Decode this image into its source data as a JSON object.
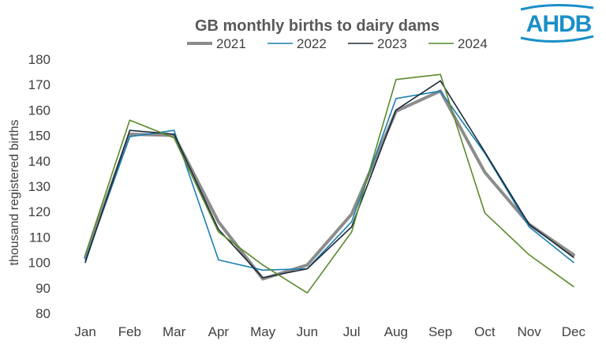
{
  "logo": {
    "text": "AHDB",
    "color": "#1a8fc8"
  },
  "chart_data": {
    "type": "line",
    "title": "GB monthly births to dairy dams",
    "xlabel": "",
    "ylabel": "thousand registered births",
    "categories": [
      "Jan",
      "Feb",
      "Mar",
      "Apr",
      "May",
      "Jun",
      "Jul",
      "Aug",
      "Sep",
      "Oct",
      "Nov",
      "Dec"
    ],
    "ylim": [
      80,
      180
    ],
    "yticks": [
      80,
      90,
      100,
      110,
      120,
      130,
      140,
      150,
      160,
      170,
      180
    ],
    "grid": false,
    "legend_position": "top",
    "series": [
      {
        "name": "2021",
        "color": "#8c8c8c",
        "width": 4,
        "values": [
          102,
          150.5,
          150,
          116,
          93.5,
          99,
          119,
          159.5,
          167.5,
          135.5,
          115,
          103
        ]
      },
      {
        "name": "2022",
        "color": "#1b7fb1",
        "width": 1.6,
        "values": [
          101,
          149.5,
          152,
          101,
          97,
          97.5,
          116,
          164.5,
          167.5,
          143,
          114,
          100
        ]
      },
      {
        "name": "2023",
        "color": "#1b2a3a",
        "width": 1.6,
        "values": [
          100,
          152,
          150.5,
          113,
          94,
          97.5,
          114,
          160,
          171.5,
          143.5,
          115,
          102
        ]
      },
      {
        "name": "2024",
        "color": "#5a8a2a",
        "width": 1.6,
        "values": [
          103,
          156,
          149,
          112,
          99,
          88,
          112,
          172,
          174,
          119.5,
          103,
          90.5
        ]
      }
    ]
  }
}
